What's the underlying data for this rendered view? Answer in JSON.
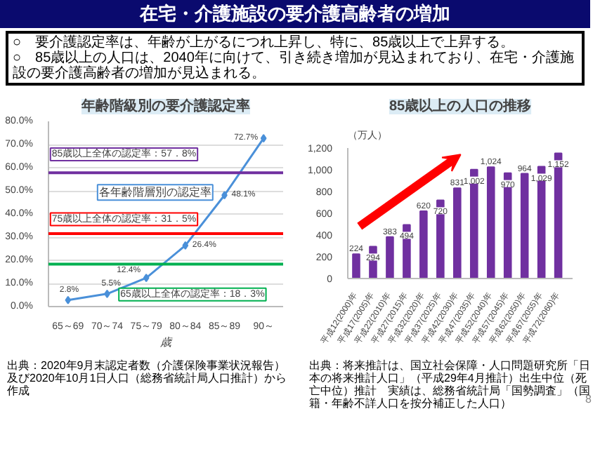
{
  "chart_data": [
    {
      "type": "other",
      "title": "在宅・介護施設の要介護高齢者の増加",
      "annotations": [
        "○　要介護認定率は、年齢が上がるにつれ上昇し、特に、85歳以上で上昇する。",
        "○　85歳以上の人口は、2040年に向けて、引き続き増加が見込まれており、在宅・介護施設の要介護高齢者の増加が見込まれる。",
        "8"
      ]
    },
    {
      "type": "line",
      "title": "年齢階級別の要介護認定率",
      "xlabel": "歳",
      "categories": [
        "65～69",
        "70～74",
        "75～79",
        "80～84",
        "85～89",
        "90～"
      ],
      "series": [
        {
          "name": "各年齢階層別の認定率",
          "color": "#4a90d9",
          "values": [
            2.8,
            5.5,
            12.4,
            26.4,
            48.1,
            72.7
          ]
        }
      ],
      "value_labels": [
        "2.8%",
        "5.5%",
        "12.4%",
        "26.4%",
        "48.1%",
        "72.7%"
      ],
      "marker": "diamond",
      "grid": "y",
      "ylim": [
        0,
        80
      ],
      "yticks": [
        {
          "value": 0,
          "label": "0.0%"
        },
        {
          "value": 10,
          "label": "10.0%"
        },
        {
          "value": 20,
          "label": "20.0%"
        },
        {
          "value": 30,
          "label": "30.0%"
        },
        {
          "value": 40,
          "label": "40.0%"
        },
        {
          "value": 50,
          "label": "50.0%"
        },
        {
          "value": 60,
          "label": "60.0%"
        },
        {
          "value": 70,
          "label": "70.0%"
        },
        {
          "value": 80,
          "label": "80.0%"
        }
      ],
      "ref_lines": [
        {
          "axis": "y",
          "value": 57.8,
          "label": "85歳以上全体の認定率：57．8%",
          "color": "#7030a0"
        },
        {
          "axis": "y",
          "value": 31.5,
          "label": "75歳以上全体の認定率：31．5%",
          "color": "#ff0000"
        },
        {
          "axis": "y",
          "value": 18.3,
          "label": "65歳以上全体の認定率：18．3%",
          "color": "#00b050"
        }
      ],
      "annotations": [
        "出典：2020年9月末認定者数（介護保険事業状況報告）及び2020年10月1日人口（総務省統計局人口推計）から作成"
      ]
    },
    {
      "type": "bar",
      "title": "85歳以上の人口の推移",
      "ylabel": "（万人）",
      "categories": [
        "平成12(2000)年",
        "平成17(2005)年",
        "平成22(2010)年",
        "平成27(2015)年",
        "平成32(2020)年",
        "平成37(2025)年",
        "平成42(2030)年",
        "平成47(2035)年",
        "平成52(2040)年",
        "平成57(2045)年",
        "平成62(2050)年",
        "平成67(2055)年",
        "平成72(2060)年"
      ],
      "values": [
        224,
        294,
        383,
        494,
        620,
        720,
        831,
        1002,
        1024,
        970,
        964,
        1029,
        1152
      ],
      "color": "#7030a0",
      "value_labels": [
        "224",
        "294",
        "383",
        "494",
        "620",
        "720",
        "831",
        "1,002",
        "1,024",
        "970",
        "964",
        "1,029",
        "1,152"
      ],
      "ylim": [
        0,
        1200
      ],
      "yticks": [
        0,
        {
          "value": 200,
          "label": "200"
        },
        {
          "value": 400,
          "label": "400"
        },
        {
          "value": 600,
          "label": "600"
        },
        {
          "value": 800,
          "label": "800"
        },
        {
          "value": 1000,
          "label": "1,000"
        },
        {
          "value": 1200,
          "label": "1,200"
        }
      ],
      "grid": false,
      "annotations": [
        "出典：将来推計は、国立社会保障・人口問題研究所「日本の将来推計人口」（平成29年4月推計）出生中位（死亡中位）推計　実績は、総務省統計局「国勢調査」（国籍・年齢不詳人口を按分補正した人口）"
      ]
    }
  ]
}
